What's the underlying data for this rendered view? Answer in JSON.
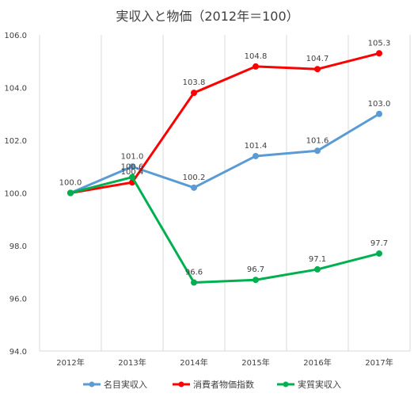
{
  "chart_data": {
    "type": "line",
    "title": "実収入と物価（2012年＝100）",
    "categories": [
      "2012年",
      "2013年",
      "2014年",
      "2015年",
      "2016年",
      "2017年"
    ],
    "ylim": [
      94.0,
      106.0
    ],
    "yticks": [
      "94.0",
      "96.0",
      "98.0",
      "100.0",
      "102.0",
      "104.0",
      "106.0"
    ],
    "grid": "vertical",
    "legend_position": "bottom",
    "series": [
      {
        "name": "名目実収入",
        "color": "#5b9bd5",
        "values": [
          100.0,
          101.0,
          100.2,
          101.4,
          101.6,
          103.0
        ],
        "labels": [
          "100.0",
          "101.0",
          "100.2",
          "101.4",
          "101.6",
          "103.0"
        ]
      },
      {
        "name": "消費者物価指数",
        "color": "#ff0000",
        "values": [
          100.0,
          100.4,
          103.8,
          104.8,
          104.7,
          105.3
        ],
        "labels": [
          "",
          "100.4",
          "103.8",
          "104.8",
          "104.7",
          "105.3"
        ]
      },
      {
        "name": "実質実収入",
        "color": "#00b050",
        "values": [
          100.0,
          100.6,
          96.6,
          96.7,
          97.1,
          97.7
        ],
        "labels": [
          "",
          "100.6",
          "96.6",
          "96.7",
          "97.1",
          "97.7"
        ]
      }
    ]
  }
}
